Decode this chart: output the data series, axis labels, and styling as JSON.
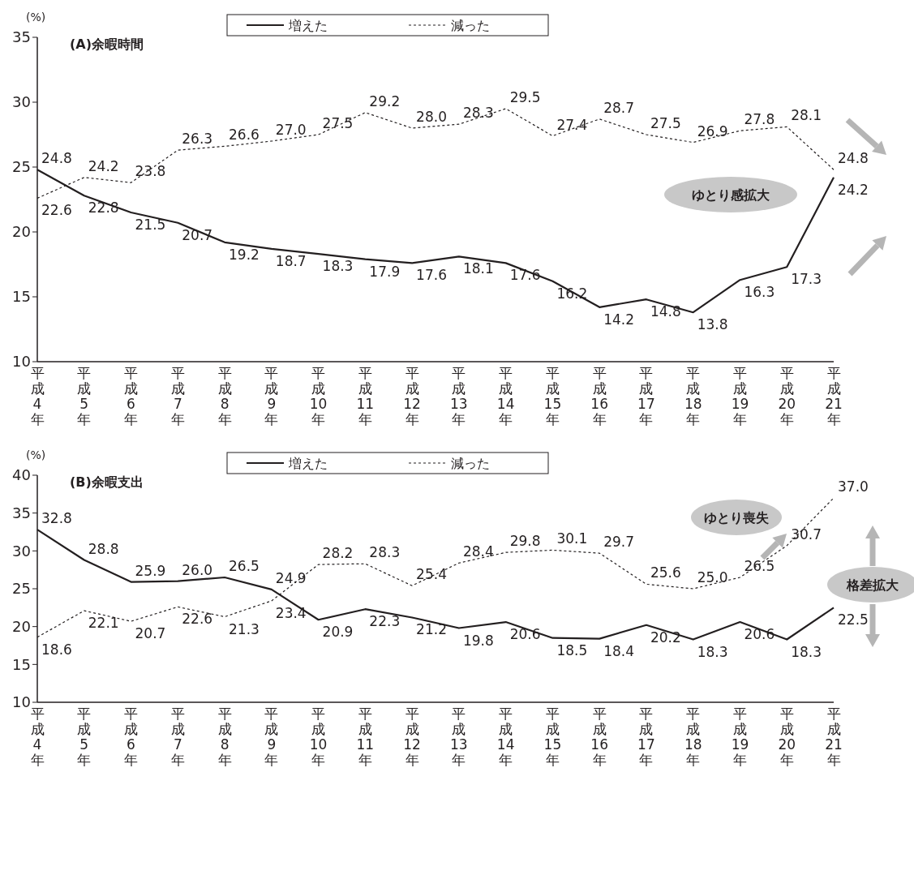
{
  "chart_data": [
    {
      "type": "line",
      "title": "(A)余暇時間",
      "ylabel": "(%)",
      "categories": [
        "平成4年",
        "平成5年",
        "平成6年",
        "平成7年",
        "平成8年",
        "平成9年",
        "平成10年",
        "平成11年",
        "平成12年",
        "平成13年",
        "平成14年",
        "平成15年",
        "平成16年",
        "平成17年",
        "平成18年",
        "平成19年",
        "平成20年",
        "平成21年"
      ],
      "series": [
        {
          "name": "増えた",
          "color": "#231f20",
          "line_style": "solid",
          "values": [
            24.8,
            22.8,
            21.5,
            20.7,
            19.2,
            18.7,
            18.3,
            17.9,
            17.6,
            18.1,
            17.6,
            16.2,
            14.2,
            14.8,
            13.8,
            16.3,
            17.3,
            24.2
          ],
          "value_labels": [
            "24.8",
            "22.8",
            "21.5",
            "20.7",
            "19.2",
            "18.7",
            "18.3",
            "17.9",
            "17.6",
            "18.1",
            "17.6",
            "16.2",
            "14.2",
            "14.8",
            "13.8",
            "16.3",
            "17.3",
            "24.2"
          ]
        },
        {
          "name": "減った",
          "color": "#231f20",
          "line_style": "dotted",
          "values": [
            22.6,
            24.2,
            23.8,
            26.3,
            26.6,
            27.0,
            27.5,
            29.2,
            28.0,
            28.3,
            29.5,
            27.4,
            28.7,
            27.5,
            26.9,
            27.8,
            28.1,
            24.8
          ],
          "value_labels": [
            "22.6",
            "24.2",
            "23.8",
            "26.3",
            "26.6",
            "27.0",
            "27.5",
            "29.2",
            "28.0",
            "28.3",
            "29.5",
            "27.4",
            "28.7",
            "27.5",
            "26.9",
            "27.8",
            "28.1",
            "24.8"
          ]
        }
      ],
      "ylim": [
        10,
        35
      ],
      "yticks": [
        10,
        15,
        20,
        25,
        30,
        35
      ],
      "legend": "top",
      "annotations": [
        "ゆとり感拡大"
      ]
    },
    {
      "type": "line",
      "title": "(B)余暇支出",
      "ylabel": "(%)",
      "categories": [
        "平成4年",
        "平成5年",
        "平成6年",
        "平成7年",
        "平成8年",
        "平成9年",
        "平成10年",
        "平成11年",
        "平成12年",
        "平成13年",
        "平成14年",
        "平成15年",
        "平成16年",
        "平成17年",
        "平成18年",
        "平成19年",
        "平成20年",
        "平成21年"
      ],
      "series": [
        {
          "name": "増えた",
          "color": "#231f20",
          "line_style": "solid",
          "values": [
            32.8,
            28.8,
            25.9,
            26.0,
            26.5,
            24.9,
            20.9,
            22.3,
            21.2,
            19.8,
            20.6,
            18.5,
            18.4,
            20.2,
            18.3,
            20.6,
            18.3,
            22.5
          ],
          "value_labels": [
            "32.8",
            "28.8",
            "25.9",
            "26.0",
            "26.5",
            "24.9",
            "20.9",
            "22.3",
            "21.2",
            "19.8",
            "20.6",
            "18.5",
            "18.4",
            "20.2",
            "18.3",
            "20.6",
            "18.3",
            "22.5"
          ]
        },
        {
          "name": "減った",
          "color": "#231f20",
          "line_style": "dotted",
          "values": [
            18.6,
            22.1,
            20.7,
            22.6,
            21.3,
            23.4,
            28.2,
            28.3,
            25.4,
            28.4,
            29.8,
            30.1,
            29.7,
            25.6,
            25.0,
            26.5,
            30.7,
            37.0
          ],
          "value_labels": [
            "18.6",
            "22.1",
            "20.7",
            "22.6",
            "21.3",
            "23.4",
            "28.2",
            "28.3",
            "25.4",
            "28.4",
            "29.8",
            "30.1",
            "29.7",
            "25.6",
            "25.0",
            "26.5",
            "30.7",
            "37.0"
          ]
        }
      ],
      "ylim": [
        10,
        40
      ],
      "yticks": [
        10,
        15,
        20,
        25,
        30,
        35,
        40
      ],
      "legend": "top",
      "annotations": [
        "ゆとり喪失",
        "格差拡大"
      ]
    }
  ]
}
